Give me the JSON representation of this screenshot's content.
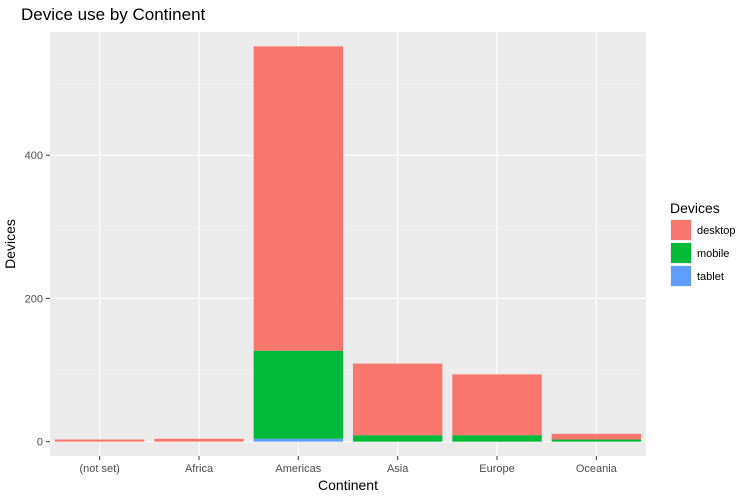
{
  "chart_data": {
    "type": "bar",
    "stacked": true,
    "title": "Device use by Continent",
    "xlabel": "Continent",
    "ylabel": "Devices",
    "categories": [
      "(not set)",
      "Africa",
      "Americas",
      "Asia",
      "Europe",
      "Oceania"
    ],
    "series": [
      {
        "name": "desktop",
        "color": "#F8766D",
        "values": [
          3,
          4,
          425,
          100,
          85,
          8
        ]
      },
      {
        "name": "mobile",
        "color": "#00BA38",
        "values": [
          0,
          0,
          123,
          9,
          9,
          3
        ]
      },
      {
        "name": "tablet",
        "color": "#619CFF",
        "values": [
          0,
          0,
          4,
          0,
          0,
          0
        ]
      }
    ],
    "stack_order": [
      "tablet",
      "mobile",
      "desktop"
    ],
    "ylim": [
      -20,
      572
    ],
    "yticks": [
      0,
      200,
      400
    ],
    "grid": true,
    "legend": {
      "title": "Devices",
      "position": "right"
    }
  }
}
